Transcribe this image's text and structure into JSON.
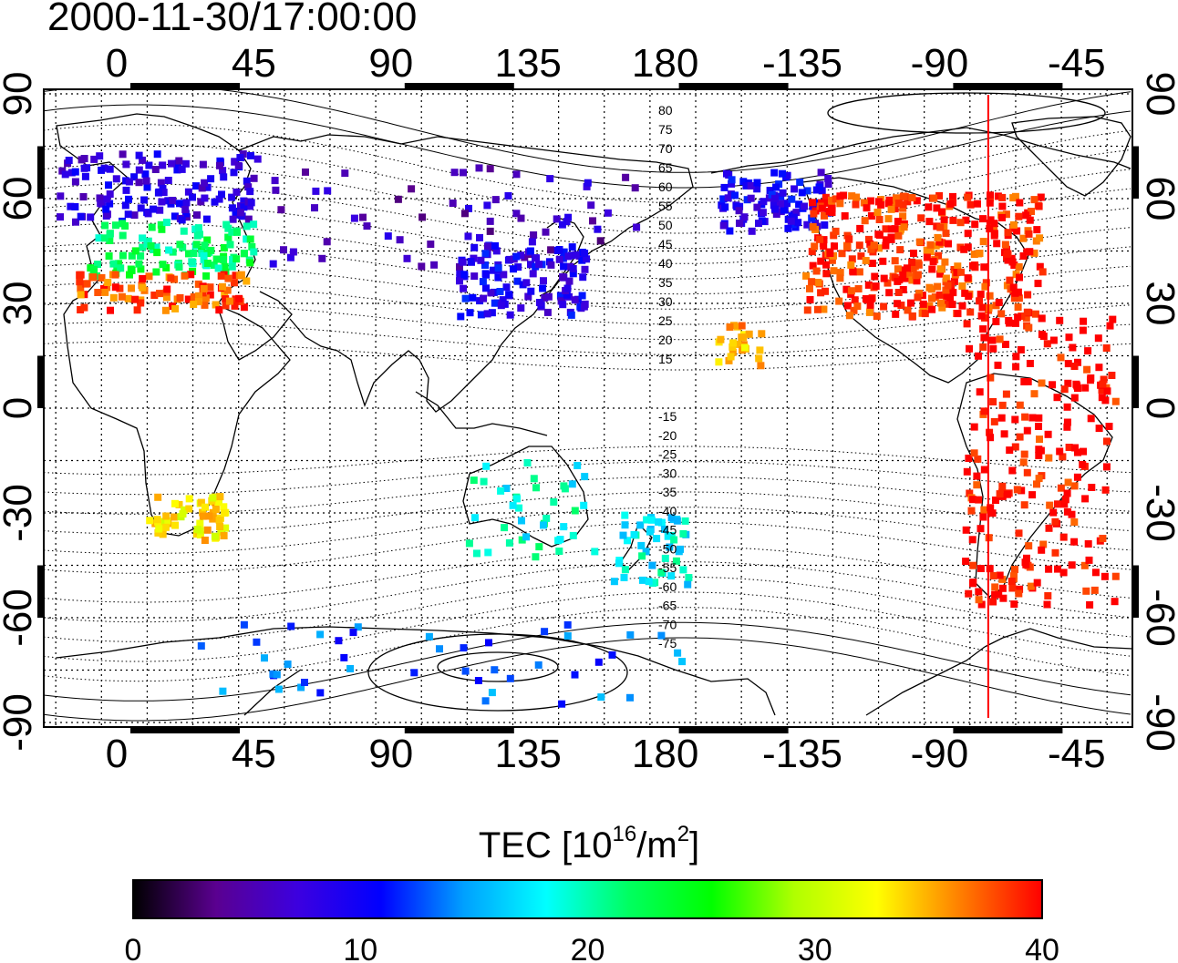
{
  "title": "2000-11-30/17:00:00",
  "map": {
    "lon_ticks": [
      "0",
      "45",
      "90",
      "135",
      "180",
      "-135",
      "-90",
      "-45"
    ],
    "lat_ticks": [
      "90",
      "60",
      "30",
      "0",
      "-30",
      "-60",
      "-90"
    ],
    "magnetic_latitude_labels": [
      "80",
      "75",
      "70",
      "65",
      "60",
      "55",
      "50",
      "45",
      "40",
      "35",
      "30",
      "25",
      "20",
      "15",
      "-15",
      "-20",
      "-25",
      "-30",
      "-35",
      "-40",
      "-45",
      "-50",
      "-55",
      "-60",
      "-65",
      "-70",
      "-75"
    ],
    "terminator_longitude": -74,
    "frame_color": "#000000",
    "terminator_color": "#ff0000"
  },
  "colorbar": {
    "title_main": "TEC  [10",
    "title_exp1": "16",
    "title_mid": "/m",
    "title_exp2": "2",
    "title_end": "]",
    "ticks": [
      "0",
      "10",
      "20",
      "30",
      "40"
    ],
    "range": [
      0,
      40
    ],
    "colors": [
      "#000000",
      "#5a0090",
      "#3c00e0",
      "#0000ff",
      "#00a0ff",
      "#00ffff",
      "#00ff60",
      "#00ff00",
      "#b0ff00",
      "#ffff00",
      "#ff8000",
      "#ff0000"
    ]
  },
  "tec_regions": [
    {
      "region": "europe-north",
      "tec": 8
    },
    {
      "region": "europe-south",
      "tec": 22
    },
    {
      "region": "iberia-nafrica",
      "tec": 38
    },
    {
      "region": "siberia",
      "tec": 6
    },
    {
      "region": "japan",
      "tec": 9
    },
    {
      "region": "southern-africa",
      "tec": 33
    },
    {
      "region": "australia",
      "tec": 19
    },
    {
      "region": "new-zealand",
      "tec": 18
    },
    {
      "region": "antarctica",
      "tec": 13
    },
    {
      "region": "alaska",
      "tec": 9
    },
    {
      "region": "north-america",
      "tec": 39
    },
    {
      "region": "south-america",
      "tec": 40
    },
    {
      "region": "hawaii",
      "tec": 35
    }
  ]
}
